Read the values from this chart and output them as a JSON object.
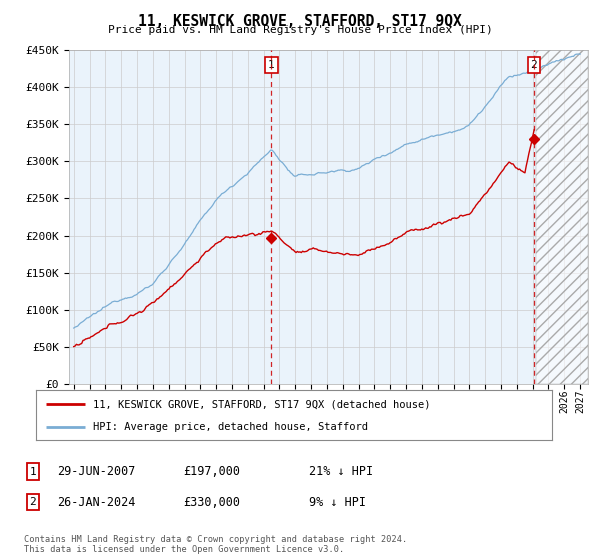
{
  "title": "11, KESWICK GROVE, STAFFORD, ST17 9QX",
  "subtitle": "Price paid vs. HM Land Registry's House Price Index (HPI)",
  "ylabel_ticks": [
    "£0",
    "£50K",
    "£100K",
    "£150K",
    "£200K",
    "£250K",
    "£300K",
    "£350K",
    "£400K",
    "£450K"
  ],
  "ylim": [
    0,
    450000
  ],
  "xlim_start": 1994.7,
  "xlim_end": 2027.5,
  "hpi_color": "#7aadd4",
  "price_color": "#cc0000",
  "vline_color": "#cc0000",
  "chart_bg": "#eaf3fb",
  "point1_x": 2007.49,
  "point1_y": 197000,
  "point1_label": "1",
  "point2_x": 2024.07,
  "point2_y": 330000,
  "point2_label": "2",
  "legend_line1": "11, KESWICK GROVE, STAFFORD, ST17 9QX (detached house)",
  "legend_line2": "HPI: Average price, detached house, Stafford",
  "table_row1": [
    "1",
    "29-JUN-2007",
    "£197,000",
    "21% ↓ HPI"
  ],
  "table_row2": [
    "2",
    "26-JAN-2024",
    "£330,000",
    "9% ↓ HPI"
  ],
  "footnote": "Contains HM Land Registry data © Crown copyright and database right 2024.\nThis data is licensed under the Open Government Licence v3.0.",
  "bg_color": "#ffffff",
  "grid_color": "#cccccc"
}
